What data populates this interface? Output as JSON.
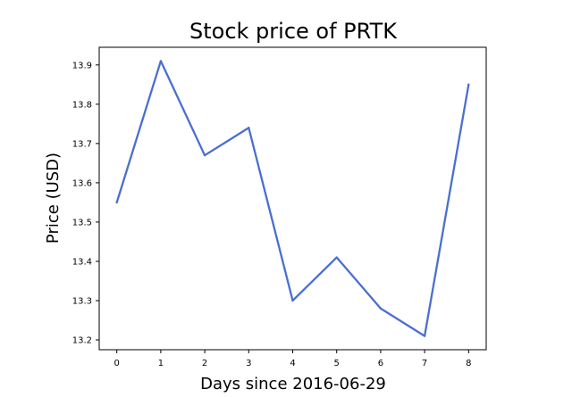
{
  "chart_data": {
    "type": "line",
    "title": "Stock price of PRTK",
    "xlabel": "Days since 2016-06-29",
    "ylabel": "Price (USD)",
    "x": [
      0,
      1,
      2,
      3,
      4,
      5,
      6,
      7,
      8
    ],
    "series": [
      {
        "values": [
          13.55,
          13.91,
          13.67,
          13.74,
          13.3,
          13.41,
          13.28,
          13.21,
          13.85
        ],
        "color": "#4a6fcf"
      }
    ],
    "xlim": [
      -0.4,
      8.4
    ],
    "ylim": [
      13.175,
      13.945
    ],
    "x_ticks": [
      "0",
      "1",
      "2",
      "3",
      "4",
      "5",
      "6",
      "7",
      "8"
    ],
    "y_ticks": [
      "13.2",
      "13.3",
      "13.4",
      "13.5",
      "13.6",
      "13.7",
      "13.8",
      "13.9"
    ],
    "grid": false,
    "legend": "none"
  }
}
